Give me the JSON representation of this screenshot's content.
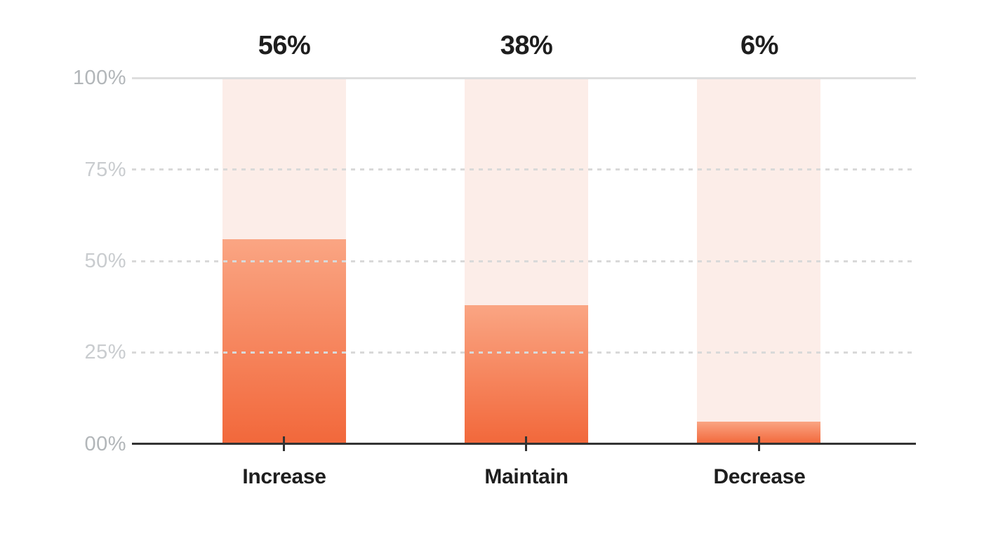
{
  "chart_data": {
    "type": "bar",
    "categories": [
      "Increase",
      "Maintain",
      "Decrease"
    ],
    "values": [
      56,
      38,
      6
    ],
    "value_labels": [
      "56%",
      "38%",
      "6%"
    ],
    "title": "",
    "xlabel": "",
    "ylabel": "",
    "ylim": [
      0,
      100
    ],
    "ytick_labels": [
      "100%",
      "75%",
      "50%",
      "25%",
      "00%"
    ],
    "grid": {
      "solid_line_at": 100,
      "dashed_lines_at": [
        75,
        50,
        25
      ],
      "orientation": "horizontal"
    },
    "legend": "none",
    "colors": {
      "bar_track_background": "#fcede8",
      "bar_fill_gradient_top": "#faa583",
      "bar_fill_gradient_bottom": "#f2683b",
      "axis_line": "#333333",
      "solid_gridline": "#dedede",
      "dashed_gridline": "#d9d9d9",
      "ytick_label_outer": "#b2b6b9",
      "ytick_label_inner": "#c9cccf",
      "label_text": "#1e1e1e",
      "background": "#ffffff"
    }
  }
}
